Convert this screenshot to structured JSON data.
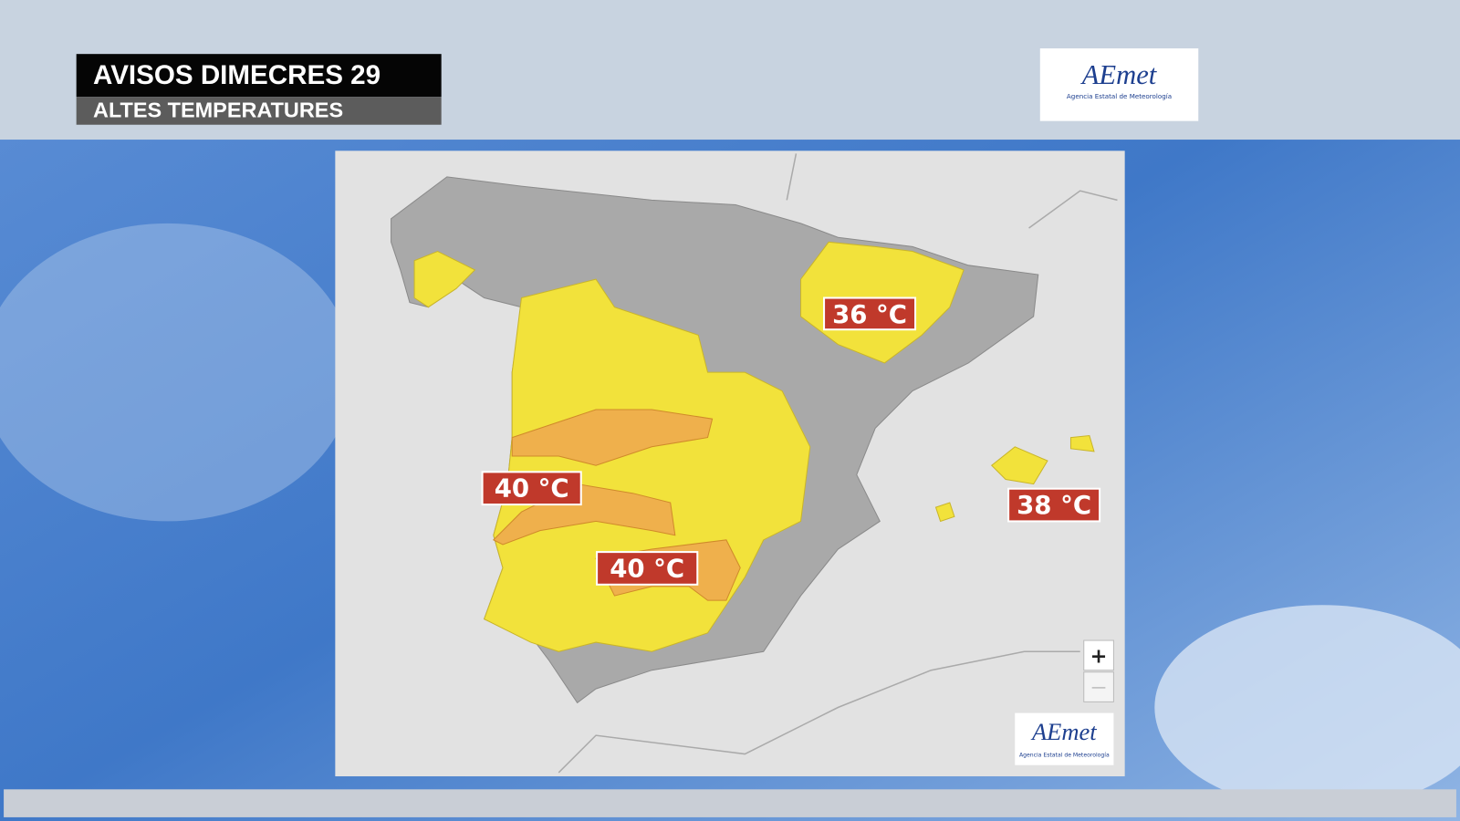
{
  "header": {
    "title": "AVISOS DIMECRES 29",
    "subtitle": "ALTES TEMPERATURES"
  },
  "logo": {
    "name": "AEmet",
    "tagline": "Agencia Estatal de Meteorología"
  },
  "map": {
    "labels": [
      "36 °C",
      "40 °C",
      "40 °C",
      "38 °C"
    ],
    "zoom": {
      "in": "+",
      "out": "—"
    },
    "logo": {
      "name": "AEmet",
      "tagline": "Agencia Estatal de Meteorología"
    }
  }
}
